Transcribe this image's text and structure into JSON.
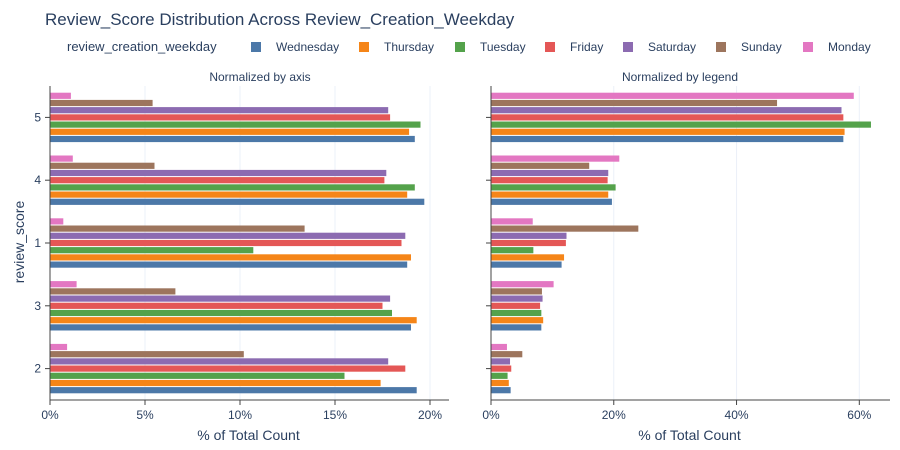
{
  "chart_data": {
    "type": "bar",
    "orientation": "horizontal",
    "title": "Review_Score Distribution Across Review_Creation_Weekday",
    "legend": {
      "title": "review_creation_weekday",
      "position": "top"
    },
    "categories": [
      "2",
      "3",
      "1",
      "4",
      "5"
    ],
    "ylabel": "review_score",
    "series": [
      {
        "name": "Wednesday",
        "color": "#4c78a8"
      },
      {
        "name": "Thursday",
        "color": "#f58518"
      },
      {
        "name": "Tuesday",
        "color": "#54a24b"
      },
      {
        "name": "Friday",
        "color": "#e45756"
      },
      {
        "name": "Saturday",
        "color": "#8c6bb1"
      },
      {
        "name": "Sunday",
        "color": "#9d755d"
      },
      {
        "name": "Monday",
        "color": "#e377c2"
      }
    ],
    "panels": [
      {
        "title": "Normalized by axis",
        "xlabel": "% of Total Count",
        "xlim": [
          0,
          21
        ],
        "ticks": [
          0,
          5,
          10,
          15,
          20
        ],
        "tick_labels": [
          "0%",
          "5%",
          "10%",
          "15%",
          "20%"
        ],
        "values": {
          "Wednesday": [
            19.3,
            19.0,
            18.8,
            19.7,
            19.2
          ],
          "Thursday": [
            17.4,
            19.3,
            19.0,
            18.8,
            18.9
          ],
          "Tuesday": [
            15.5,
            18.0,
            10.7,
            19.2,
            19.5
          ],
          "Friday": [
            18.7,
            17.5,
            18.5,
            17.6,
            17.9
          ],
          "Saturday": [
            17.8,
            17.9,
            18.7,
            17.7,
            17.8
          ],
          "Sunday": [
            10.2,
            6.6,
            13.4,
            5.5,
            5.4
          ],
          "Monday": [
            0.9,
            1.4,
            0.7,
            1.2,
            1.1
          ]
        }
      },
      {
        "title": "Normalized by legend",
        "xlabel": "% of Total Count",
        "xlim": [
          0,
          65
        ],
        "ticks": [
          0,
          20,
          40,
          60
        ],
        "tick_labels": [
          "0%",
          "20%",
          "40%",
          "60%"
        ],
        "values": {
          "Wednesday": [
            3.2,
            8.2,
            11.5,
            19.7,
            57.4
          ],
          "Thursday": [
            2.9,
            8.5,
            11.9,
            19.1,
            57.6
          ],
          "Tuesday": [
            2.7,
            8.2,
            6.9,
            20.3,
            61.9
          ],
          "Friday": [
            3.3,
            8.0,
            12.2,
            19.0,
            57.4
          ],
          "Saturday": [
            3.1,
            8.4,
            12.3,
            19.1,
            57.1
          ],
          "Sunday": [
            5.1,
            8.3,
            24.0,
            16.0,
            46.6
          ],
          "Monday": [
            2.6,
            10.2,
            6.8,
            20.9,
            59.1
          ]
        }
      }
    ]
  }
}
